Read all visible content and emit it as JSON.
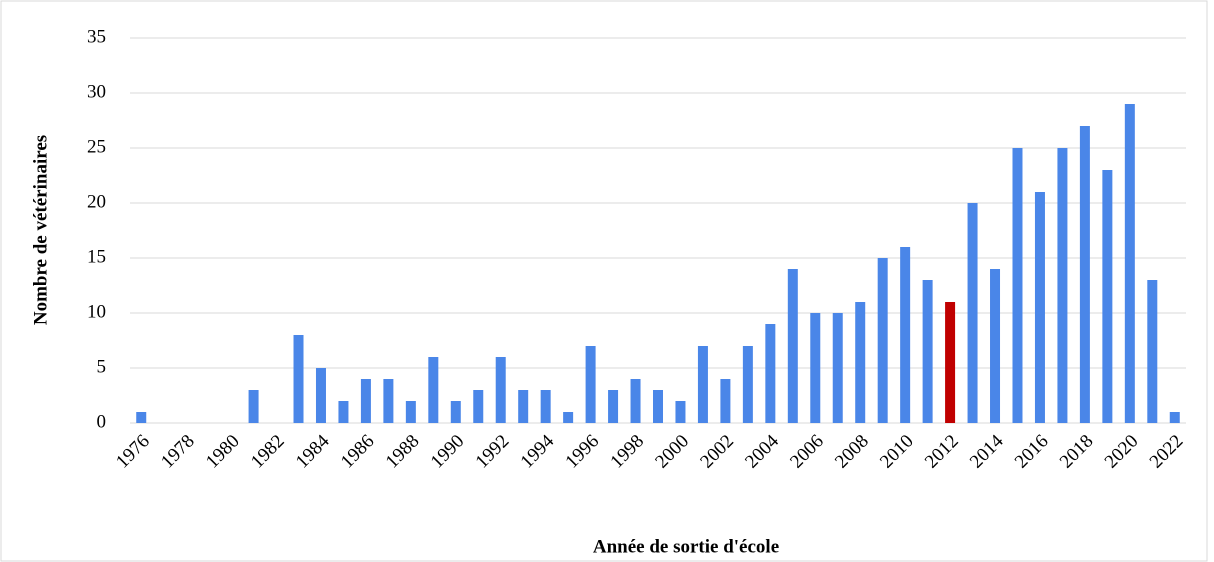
{
  "chart_data": {
    "type": "bar",
    "x_label": "Année de sortie d'école",
    "y_label": "Nombre de vétérinaires",
    "categories": [
      "1976",
      null,
      "1978",
      null,
      "1980",
      null,
      "1982",
      null,
      "1984",
      null,
      "1986",
      null,
      "1988",
      null,
      "1990",
      null,
      "1992",
      null,
      "1994",
      null,
      "1996",
      null,
      "1998",
      null,
      "2000",
      null,
      "2002",
      null,
      "2004",
      null,
      "2006",
      null,
      "2008",
      null,
      "2010",
      null,
      "2012",
      null,
      "2014",
      null,
      "2016",
      null,
      "2018",
      null,
      "2020",
      null,
      "2022"
    ],
    "values": [
      1,
      0,
      0,
      0,
      0,
      3,
      0,
      8,
      5,
      2,
      4,
      4,
      2,
      6,
      2,
      3,
      6,
      3,
      3,
      1,
      7,
      3,
      4,
      3,
      2,
      7,
      4,
      7,
      9,
      14,
      10,
      10,
      11,
      15,
      16,
      13,
      11,
      20,
      14,
      25,
      21,
      25,
      27,
      23,
      29,
      13,
      1
    ],
    "colors": [
      "#4a86e8",
      "#4a86e8",
      "#4a86e8",
      "#4a86e8",
      "#4a86e8",
      "#4a86e8",
      "#4a86e8",
      "#4a86e8",
      "#4a86e8",
      "#4a86e8",
      "#4a86e8",
      "#4a86e8",
      "#4a86e8",
      "#4a86e8",
      "#4a86e8",
      "#4a86e8",
      "#4a86e8",
      "#4a86e8",
      "#4a86e8",
      "#4a86e8",
      "#4a86e8",
      "#4a86e8",
      "#4a86e8",
      "#4a86e8",
      "#4a86e8",
      "#4a86e8",
      "#4a86e8",
      "#4a86e8",
      "#4a86e8",
      "#4a86e8",
      "#4a86e8",
      "#4a86e8",
      "#4a86e8",
      "#4a86e8",
      "#4a86e8",
      "#4a86e8",
      "#c00000",
      "#4a86e8",
      "#4a86e8",
      "#4a86e8",
      "#4a86e8",
      "#4a86e8",
      "#4a86e8",
      "#4a86e8",
      "#4a86e8",
      "#4a86e8",
      "#4a86e8"
    ],
    "ylim": [
      0,
      35
    ],
    "yticks": [
      0,
      5,
      10,
      15,
      20,
      25,
      30,
      35
    ],
    "grid": true
  }
}
